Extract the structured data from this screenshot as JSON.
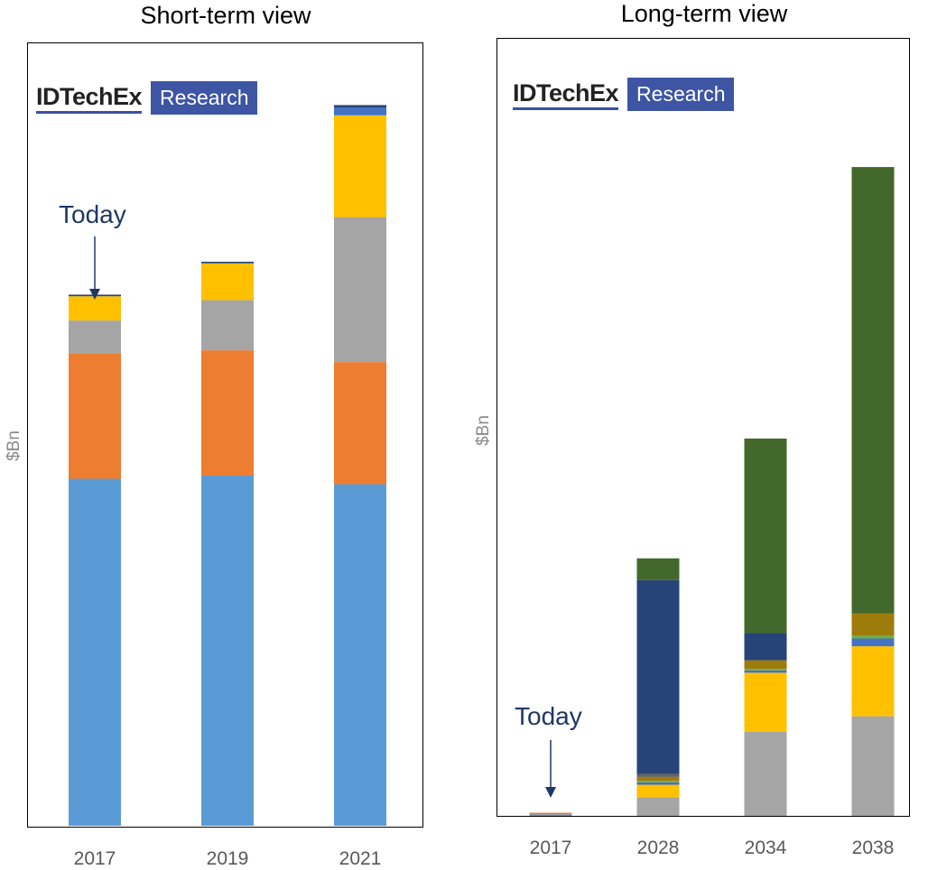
{
  "charts": {
    "left": {
      "title": "Short-term view",
      "ylabel": "$Bn",
      "today": "Today",
      "logo_main": "IDTechEx",
      "logo_box": "Research"
    },
    "right": {
      "title": "Long-term view",
      "ylabel": "$Bn",
      "today": "Today",
      "logo_main": "IDTechEx",
      "logo_box": "Research"
    }
  },
  "chart_data": [
    {
      "type": "bar",
      "stacked": true,
      "title": "Short-term view",
      "xlabel": "",
      "ylabel": "$Bn",
      "ylim": [
        0,
        100
      ],
      "categories": [
        "2017",
        "2019",
        "2021"
      ],
      "annotation": {
        "text": "Today",
        "category": "2017"
      },
      "series": [
        {
          "name": "series-1",
          "color": "#5b9bd5",
          "values": [
            44.3,
            44.7,
            43.6
          ]
        },
        {
          "name": "series-2",
          "color": "#ed7d31",
          "values": [
            16.0,
            16.0,
            15.6
          ]
        },
        {
          "name": "series-3",
          "color": "#a5a5a5",
          "values": [
            4.2,
            6.4,
            18.5
          ]
        },
        {
          "name": "series-4",
          "color": "#ffc000",
          "values": [
            3.1,
            4.7,
            13.0
          ]
        },
        {
          "name": "series-5",
          "color": "#4472c4",
          "values": [
            0.0,
            0.0,
            1.0
          ]
        },
        {
          "name": "series-6",
          "color": "#264478",
          "values": [
            0.2,
            0.2,
            0.3
          ]
        }
      ]
    },
    {
      "type": "bar",
      "stacked": true,
      "title": "Long-term view",
      "xlabel": "",
      "ylabel": "$Bn",
      "ylim": [
        0,
        100
      ],
      "categories": [
        "2017",
        "2028",
        "2034",
        "2038"
      ],
      "annotation": {
        "text": "Today",
        "category": "2017"
      },
      "series": [
        {
          "name": "series-1",
          "color": "#5b9bd5",
          "values": [
            0.2,
            0.0,
            0.0,
            0.0
          ]
        },
        {
          "name": "series-2",
          "color": "#ed7d31",
          "values": [
            0.2,
            0.0,
            0.0,
            0.0
          ]
        },
        {
          "name": "series-3",
          "color": "#a5a5a5",
          "values": [
            0.0,
            2.4,
            10.8,
            12.8
          ]
        },
        {
          "name": "series-4",
          "color": "#ffc000",
          "values": [
            0.0,
            1.6,
            7.6,
            9.0
          ]
        },
        {
          "name": "series-5",
          "color": "#4472c4",
          "values": [
            0.0,
            0.3,
            0.3,
            1.0
          ]
        },
        {
          "name": "series-6",
          "color": "#70ad47",
          "values": [
            0.0,
            0.2,
            0.2,
            0.4
          ]
        },
        {
          "name": "series-7",
          "color": "#9e7c0b",
          "values": [
            0.0,
            0.5,
            1.1,
            2.8
          ]
        },
        {
          "name": "series-8",
          "color": "#636363",
          "values": [
            0.0,
            0.4,
            0.0,
            0.0
          ]
        },
        {
          "name": "series-9",
          "color": "#264478",
          "values": [
            0.0,
            24.9,
            3.5,
            0.0
          ]
        },
        {
          "name": "series-10",
          "color": "#43682b",
          "values": [
            0.0,
            2.8,
            25.0,
            57.4
          ]
        }
      ]
    }
  ]
}
